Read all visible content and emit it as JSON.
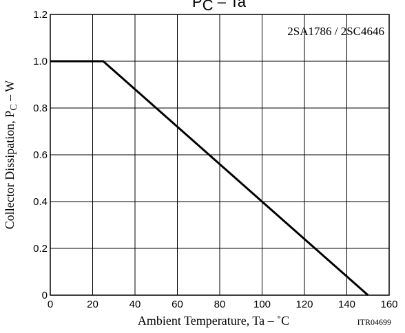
{
  "chart_data": {
    "type": "line",
    "title_main": "P",
    "title_sub": "C",
    "title_rest": " – Ta",
    "annotation": "2SA1786 / 2SC4646",
    "xlabel": "Ambient Temperature, Ta  –  ˚C",
    "ylabel_main": "Collector Dissipation, P",
    "ylabel_sub": "C",
    "ylabel_rest": "  –  W",
    "code": "ITR04699",
    "xlim": [
      0,
      160
    ],
    "ylim": [
      0,
      1.2
    ],
    "x_ticks": [
      0,
      20,
      40,
      60,
      80,
      100,
      120,
      140,
      160
    ],
    "x_tick_labels": [
      "0",
      "20",
      "40",
      "60",
      "80",
      "100",
      "120",
      "140",
      "160"
    ],
    "y_ticks": [
      0,
      0.2,
      0.4,
      0.6,
      0.8,
      1.0,
      1.2
    ],
    "y_tick_labels": [
      "0",
      "0.2",
      "0.4",
      "0.6",
      "0.8",
      "1.0",
      "1.2"
    ],
    "grid": true,
    "series": [
      {
        "x": [
          0,
          25,
          150
        ],
        "y": [
          1.0,
          1.0,
          0
        ]
      }
    ]
  }
}
